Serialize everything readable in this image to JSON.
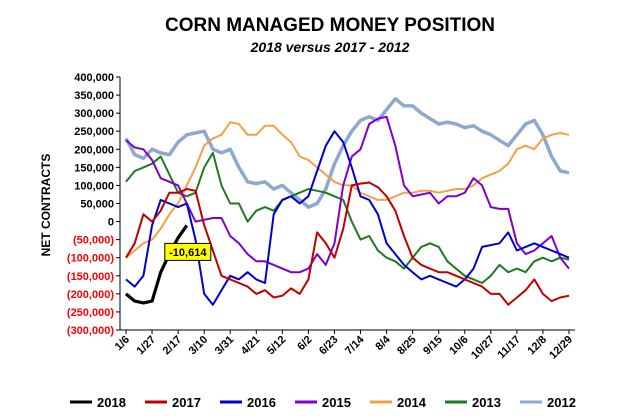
{
  "chart_data": {
    "type": "line",
    "title": "CORN MANAGED MONEY POSITION",
    "subtitle": "2018 versus 2017 - 2012",
    "ylabel": "NET CONTRACTS",
    "xlabel": "",
    "ylim": [
      -300000,
      400000
    ],
    "y_ticks": [
      400000,
      350000,
      300000,
      250000,
      200000,
      150000,
      100000,
      50000,
      0,
      -50000,
      -100000,
      -150000,
      -200000,
      -250000,
      -300000
    ],
    "y_tick_labels": [
      "400,000",
      "350,000",
      "300,000",
      "250,000",
      "200,000",
      "150,000",
      "100,000",
      "50,000",
      "0",
      "(50,000)",
      "(100,000)",
      "(150,000)",
      "(200,000)",
      "(250,000)",
      "(300,000)"
    ],
    "x_tick_labels": [
      "1/6",
      "1/27",
      "2/17",
      "3/10",
      "3/31",
      "4/21",
      "5/12",
      "6/2",
      "6/23",
      "7/14",
      "8/4",
      "8/25",
      "9/15",
      "10/6",
      "10/27",
      "11/17",
      "12/8",
      "12/29"
    ],
    "x_tick_week_index": [
      0,
      3,
      6,
      9,
      12,
      15,
      18,
      21,
      24,
      27,
      30,
      33,
      36,
      39,
      42,
      45,
      48,
      51
    ],
    "x_count": 52,
    "grid": false,
    "legend_position": "bottom",
    "annotation": {
      "text": "-10,614",
      "week_index": 7,
      "value": -10614
    },
    "series": [
      {
        "name": "2018",
        "color": "#000000",
        "width": 3.2,
        "values": [
          -200000,
          -220000,
          -225000,
          -220000,
          -140000,
          -90000,
          -45000,
          -10614
        ]
      },
      {
        "name": "2017",
        "color": "#c00000",
        "width": 2,
        "values": [
          -100000,
          -60000,
          20000,
          0,
          30000,
          80000,
          80000,
          90000,
          85000,
          -10000,
          -80000,
          -150000,
          -160000,
          -170000,
          -180000,
          -200000,
          -190000,
          -210000,
          -205000,
          -185000,
          -200000,
          -160000,
          -30000,
          -60000,
          -100000,
          -20000,
          100000,
          105000,
          108000,
          95000,
          70000,
          30000,
          -40000,
          -100000,
          -120000,
          -130000,
          -140000,
          -140000,
          -150000,
          -160000,
          -170000,
          -180000,
          -200000,
          -200000,
          -230000,
          -210000,
          -190000,
          -160000,
          -200000,
          -220000,
          -210000,
          -205000
        ]
      },
      {
        "name": "2016",
        "color": "#0000cc",
        "width": 2,
        "values": [
          -160000,
          -180000,
          -150000,
          -10000,
          60000,
          50000,
          40000,
          50000,
          -50000,
          -200000,
          -230000,
          -190000,
          -150000,
          -160000,
          -140000,
          -160000,
          -170000,
          20000,
          60000,
          70000,
          50000,
          70000,
          140000,
          210000,
          250000,
          220000,
          150000,
          70000,
          60000,
          20000,
          -60000,
          -90000,
          -120000,
          -140000,
          -160000,
          -150000,
          -160000,
          -170000,
          -180000,
          -160000,
          -130000,
          -70000,
          -65000,
          -60000,
          -30000,
          -80000,
          -70000,
          -60000,
          -70000,
          -80000,
          -90000,
          -100000
        ]
      },
      {
        "name": "2015",
        "color": "#7f00cc",
        "width": 2,
        "values": [
          225000,
          205000,
          200000,
          170000,
          120000,
          110000,
          100000,
          50000,
          0,
          5000,
          10000,
          10000,
          -40000,
          -60000,
          -90000,
          -110000,
          -110000,
          -120000,
          -130000,
          -140000,
          -140000,
          -130000,
          -90000,
          -120000,
          -60000,
          100000,
          180000,
          200000,
          270000,
          285000,
          290000,
          210000,
          100000,
          70000,
          75000,
          80000,
          50000,
          70000,
          70000,
          80000,
          120000,
          100000,
          40000,
          35000,
          35000,
          -60000,
          -90000,
          -80000,
          -60000,
          -40000,
          -100000,
          -130000
        ]
      },
      {
        "name": "2014",
        "color": "#f4a043",
        "width": 2,
        "values": [
          -100000,
          -80000,
          -60000,
          -50000,
          -20000,
          20000,
          50000,
          100000,
          150000,
          210000,
          230000,
          240000,
          275000,
          270000,
          240000,
          240000,
          265000,
          265000,
          240000,
          220000,
          180000,
          170000,
          150000,
          130000,
          110000,
          100000,
          100000,
          80000,
          70000,
          60000,
          60000,
          70000,
          80000,
          80000,
          85000,
          85000,
          80000,
          85000,
          90000,
          90000,
          100000,
          120000,
          130000,
          140000,
          160000,
          200000,
          210000,
          200000,
          230000,
          240000,
          245000,
          240000
        ]
      },
      {
        "name": "2013",
        "color": "#1f7a1f",
        "width": 2,
        "values": [
          110000,
          140000,
          150000,
          160000,
          180000,
          130000,
          80000,
          70000,
          80000,
          150000,
          190000,
          100000,
          50000,
          50000,
          0,
          30000,
          40000,
          30000,
          60000,
          70000,
          80000,
          90000,
          85000,
          80000,
          70000,
          60000,
          0,
          -50000,
          -40000,
          -80000,
          -100000,
          -110000,
          -130000,
          -100000,
          -70000,
          -60000,
          -70000,
          -110000,
          -130000,
          -150000,
          -160000,
          -170000,
          -150000,
          -120000,
          -140000,
          -130000,
          -140000,
          -110000,
          -100000,
          -110000,
          -100000,
          -105000
        ]
      },
      {
        "name": "2012",
        "color": "#8fa8cf",
        "width": 3.5,
        "values": [
          230000,
          185000,
          175000,
          200000,
          190000,
          185000,
          220000,
          240000,
          245000,
          250000,
          200000,
          190000,
          200000,
          150000,
          110000,
          105000,
          110000,
          90000,
          100000,
          80000,
          60000,
          40000,
          50000,
          90000,
          160000,
          210000,
          250000,
          280000,
          290000,
          280000,
          310000,
          340000,
          320000,
          320000,
          300000,
          285000,
          270000,
          275000,
          270000,
          260000,
          265000,
          250000,
          240000,
          225000,
          210000,
          240000,
          270000,
          280000,
          240000,
          180000,
          140000,
          135000
        ]
      }
    ]
  }
}
